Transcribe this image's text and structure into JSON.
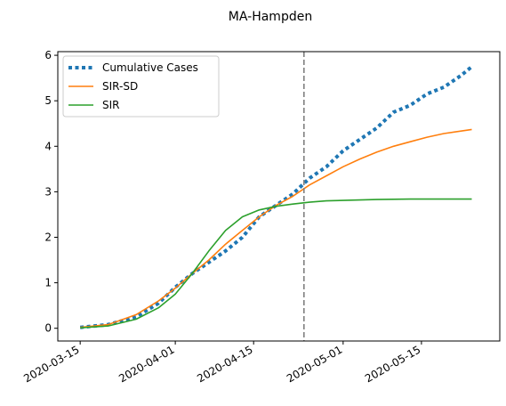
{
  "chart_data": {
    "type": "line",
    "title": "MA-Hampden",
    "xlabel": "",
    "ylabel": "",
    "x_type": "date",
    "xlim": [
      "2020-03-11",
      "2020-05-29"
    ],
    "ylim": [
      -0.28,
      6.08
    ],
    "x_ticks": [
      "2020-03-15",
      "2020-04-01",
      "2020-04-15",
      "2020-05-01",
      "2020-05-15"
    ],
    "y_ticks": [
      0,
      1,
      2,
      3,
      4,
      5,
      6
    ],
    "grid": false,
    "legend": "top-left",
    "vline": {
      "x": "2020-04-24",
      "color": "#808080",
      "style": "dashed"
    },
    "series": [
      {
        "name": "Cumulative Cases",
        "color": "#1f77b4",
        "style": "dotted",
        "x": [
          "2020-03-15",
          "2020-03-20",
          "2020-03-25",
          "2020-03-29",
          "2020-04-01",
          "2020-04-04",
          "2020-04-07",
          "2020-04-10",
          "2020-04-13",
          "2020-04-16",
          "2020-04-19",
          "2020-04-22",
          "2020-04-25",
          "2020-04-28",
          "2020-05-01",
          "2020-05-04",
          "2020-05-07",
          "2020-05-10",
          "2020-05-13",
          "2020-05-16",
          "2020-05-19",
          "2020-05-22",
          "2020-05-24"
        ],
        "values": [
          0.02,
          0.08,
          0.25,
          0.55,
          0.9,
          1.2,
          1.45,
          1.7,
          2.0,
          2.45,
          2.7,
          2.95,
          3.3,
          3.55,
          3.9,
          4.15,
          4.4,
          4.75,
          4.9,
          5.15,
          5.3,
          5.55,
          5.75
        ]
      },
      {
        "name": "SIR-SD",
        "color": "#ff7f0e",
        "style": "solid",
        "x": [
          "2020-03-15",
          "2020-03-20",
          "2020-03-25",
          "2020-03-29",
          "2020-04-01",
          "2020-04-04",
          "2020-04-07",
          "2020-04-10",
          "2020-04-13",
          "2020-04-16",
          "2020-04-19",
          "2020-04-22",
          "2020-04-25",
          "2020-04-28",
          "2020-05-01",
          "2020-05-04",
          "2020-05-07",
          "2020-05-10",
          "2020-05-13",
          "2020-05-16",
          "2020-05-19",
          "2020-05-24"
        ],
        "values": [
          0.02,
          0.08,
          0.3,
          0.6,
          0.88,
          1.2,
          1.5,
          1.85,
          2.15,
          2.45,
          2.7,
          2.9,
          3.15,
          3.35,
          3.55,
          3.72,
          3.87,
          4.0,
          4.1,
          4.2,
          4.28,
          4.37
        ]
      },
      {
        "name": "SIR",
        "color": "#2ca02c",
        "style": "solid",
        "x": [
          "2020-03-15",
          "2020-03-20",
          "2020-03-25",
          "2020-03-29",
          "2020-04-01",
          "2020-04-04",
          "2020-04-07",
          "2020-04-10",
          "2020-04-13",
          "2020-04-16",
          "2020-04-19",
          "2020-04-22",
          "2020-04-25",
          "2020-04-28",
          "2020-05-01",
          "2020-05-07",
          "2020-05-13",
          "2020-05-19",
          "2020-05-24"
        ],
        "values": [
          0.01,
          0.05,
          0.2,
          0.45,
          0.75,
          1.2,
          1.7,
          2.15,
          2.45,
          2.6,
          2.68,
          2.73,
          2.77,
          2.8,
          2.81,
          2.83,
          2.84,
          2.84,
          2.84
        ]
      }
    ]
  }
}
